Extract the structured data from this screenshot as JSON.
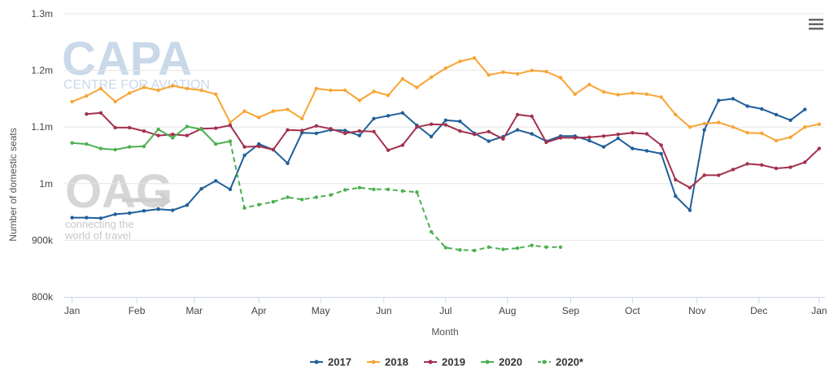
{
  "watermarks": {
    "capa_logo": "CAPA",
    "capa_sub": "CENTRE FOR AVIATION",
    "oag_logo": "OAG",
    "oag_tagline_1": "connecting the",
    "oag_tagline_2": "world of travel"
  },
  "menu": {
    "icon": "hamburger-menu-icon"
  },
  "chart_data": {
    "type": "line",
    "title": "",
    "xlabel": "Month",
    "ylabel": "Number of domestic seats",
    "ylim": [
      800000,
      1300000
    ],
    "xlim": [
      1,
      53
    ],
    "y_ticks": [
      {
        "value": 800000,
        "label": "800k"
      },
      {
        "value": 900000,
        "label": "900k"
      },
      {
        "value": 1000000,
        "label": "1m"
      },
      {
        "value": 1100000,
        "label": "1.1m"
      },
      {
        "value": 1200000,
        "label": "1.2m"
      },
      {
        "value": 1300000,
        "label": "1.3m"
      }
    ],
    "x_ticks": [
      {
        "value": 1,
        "label": "Jan"
      },
      {
        "value": 5.5,
        "label": "Feb"
      },
      {
        "value": 9.5,
        "label": "Mar"
      },
      {
        "value": 14,
        "label": "Apr"
      },
      {
        "value": 18.3,
        "label": "May"
      },
      {
        "value": 22.7,
        "label": "Jun"
      },
      {
        "value": 27,
        "label": "Jul"
      },
      {
        "value": 31.3,
        "label": "Aug"
      },
      {
        "value": 35.7,
        "label": "Sep"
      },
      {
        "value": 40,
        "label": "Oct"
      },
      {
        "value": 44.5,
        "label": "Nov"
      },
      {
        "value": 48.8,
        "label": "Dec"
      },
      {
        "value": 53,
        "label": "Jan"
      }
    ],
    "grid": "horizontal",
    "legend_position": "bottom-center",
    "series": [
      {
        "name": "2017",
        "color": "#1f5f9a",
        "dashed": false,
        "x": [
          1,
          2,
          3,
          4,
          5,
          6,
          7,
          8,
          9,
          10,
          11,
          12,
          13,
          14,
          15,
          16,
          17,
          18,
          19,
          20,
          21,
          22,
          23,
          24,
          25,
          26,
          27,
          28,
          29,
          30,
          31,
          32,
          33,
          34,
          35,
          36,
          37,
          38,
          39,
          40,
          41,
          42,
          43,
          44,
          45,
          46,
          47,
          48,
          49,
          50,
          51,
          52
        ],
        "values": [
          940000,
          940000,
          939000,
          946000,
          948000,
          952000,
          955000,
          953000,
          962000,
          991000,
          1005000,
          990000,
          1050000,
          1070000,
          1060000,
          1036000,
          1090000,
          1089000,
          1095000,
          1094000,
          1085000,
          1115000,
          1120000,
          1125000,
          1103000,
          1083000,
          1112000,
          1110000,
          1089000,
          1075000,
          1083000,
          1095000,
          1088000,
          1075000,
          1084000,
          1084000,
          1076000,
          1065000,
          1080000,
          1062000,
          1058000,
          1053000,
          978000,
          953000,
          1095000,
          1147000,
          1150000,
          1137000,
          1132000,
          1122000,
          1112000,
          1131000
        ]
      },
      {
        "name": "2018",
        "color": "#f7a535",
        "dashed": false,
        "x": [
          1,
          2,
          3,
          4,
          5,
          6,
          7,
          8,
          9,
          10,
          11,
          12,
          13,
          14,
          15,
          16,
          17,
          18,
          19,
          20,
          21,
          22,
          23,
          24,
          25,
          26,
          27,
          28,
          29,
          30,
          31,
          32,
          33,
          34,
          35,
          36,
          37,
          38,
          39,
          40,
          41,
          42,
          43,
          44,
          45,
          46,
          47,
          48,
          49,
          50,
          51,
          52,
          53
        ],
        "values": [
          1145000,
          1155000,
          1168000,
          1145000,
          1160000,
          1170000,
          1165000,
          1173000,
          1168000,
          1165000,
          1158000,
          1108000,
          1128000,
          1117000,
          1128000,
          1131000,
          1115000,
          1168000,
          1165000,
          1165000,
          1147000,
          1163000,
          1156000,
          1185000,
          1170000,
          1188000,
          1204000,
          1216000,
          1222000,
          1192000,
          1197000,
          1194000,
          1200000,
          1198000,
          1187000,
          1158000,
          1175000,
          1162000,
          1157000,
          1160000,
          1158000,
          1153000,
          1122000,
          1100000,
          1106000,
          1108000,
          1100000,
          1090000,
          1089000,
          1076000,
          1082000,
          1100000,
          1105000
        ]
      },
      {
        "name": "2019",
        "color": "#a3314e",
        "dashed": false,
        "x": [
          2,
          3,
          4,
          5,
          6,
          7,
          8,
          9,
          10,
          11,
          12,
          13,
          14,
          15,
          16,
          17,
          18,
          19,
          20,
          21,
          22,
          23,
          24,
          25,
          26,
          27,
          28,
          29,
          30,
          31,
          32,
          33,
          34,
          35,
          36,
          37,
          38,
          39,
          40,
          41,
          42,
          43,
          44,
          45,
          46,
          47,
          48,
          49,
          50,
          51,
          52,
          53
        ],
        "values": [
          1123000,
          1125000,
          1099000,
          1099000,
          1093000,
          1085000,
          1087000,
          1085000,
          1097000,
          1098000,
          1103000,
          1065000,
          1066000,
          1060000,
          1095000,
          1094000,
          1102000,
          1097000,
          1089000,
          1093000,
          1092000,
          1059000,
          1068000,
          1100000,
          1105000,
          1104000,
          1093000,
          1087000,
          1092000,
          1079000,
          1122000,
          1119000,
          1073000,
          1081000,
          1081000,
          1082000,
          1084000,
          1087000,
          1090000,
          1088000,
          1068000,
          1007000,
          993000,
          1015000,
          1015000,
          1025000,
          1035000,
          1033000,
          1027000,
          1029000,
          1038000,
          1062000
        ]
      },
      {
        "name": "2020",
        "color": "#4cb050",
        "dashed": false,
        "x": [
          1,
          2,
          3,
          4,
          5,
          6,
          7,
          8,
          9,
          10,
          11,
          12
        ],
        "values": [
          1072000,
          1070000,
          1062000,
          1060000,
          1065000,
          1066000,
          1096000,
          1081000,
          1101000,
          1096000,
          1070000,
          1075000
        ]
      },
      {
        "name": "2020*",
        "color": "#4cb050",
        "dashed": true,
        "x": [
          12,
          13,
          14,
          15,
          16,
          17,
          18,
          19,
          20,
          21,
          22,
          23,
          24,
          25,
          26,
          27,
          28,
          29,
          30,
          31,
          32,
          33,
          34,
          35
        ],
        "values": [
          1075000,
          957000,
          963000,
          968000,
          976000,
          972000,
          976000,
          980000,
          989000,
          993000,
          990000,
          990000,
          987000,
          985000,
          915000,
          887000,
          883000,
          882000,
          888000,
          884000,
          886000,
          891000,
          888000,
          888000
        ]
      }
    ]
  }
}
